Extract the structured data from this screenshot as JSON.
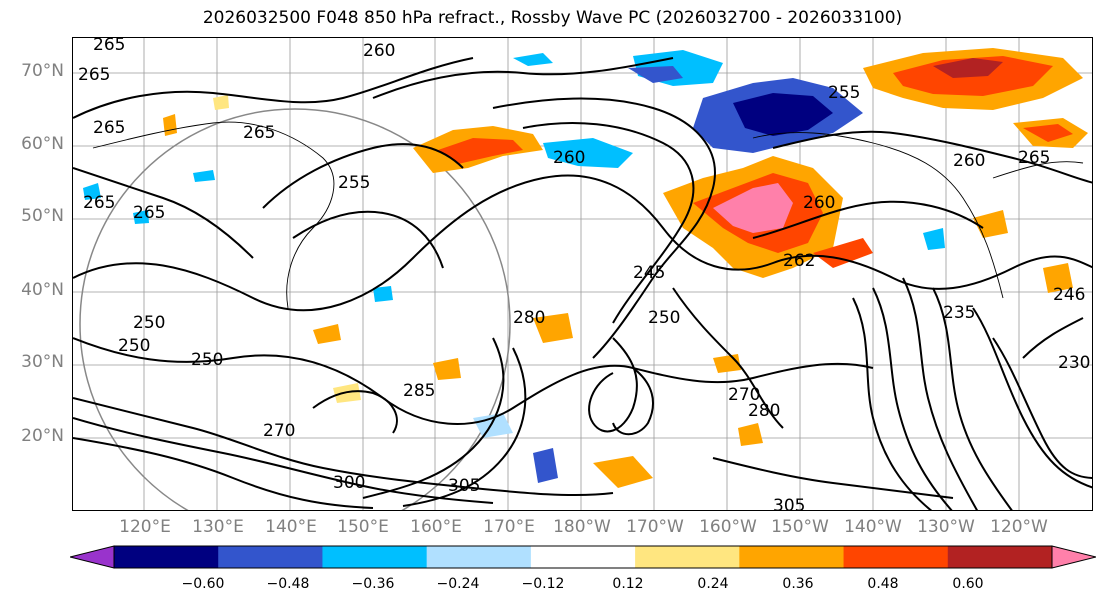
{
  "title": "2026032500 F048 850 hPa refract., Rossby Wave PC (2026032700 - 2026033100)",
  "latitude_labels": [
    "70°N",
    "60°N",
    "50°N",
    "40°N",
    "30°N",
    "20°N"
  ],
  "longitude_labels": [
    "120°E",
    "130°E",
    "140°E",
    "150°E",
    "160°E",
    "170°E",
    "180°W",
    "170°W",
    "160°W",
    "150°W",
    "140°W",
    "130°W",
    "120°W"
  ],
  "contour_labels": [
    "265",
    "260",
    "265",
    "265",
    "265",
    "255",
    "260",
    "255",
    "265",
    "260",
    "262",
    "245",
    "250",
    "265",
    "280",
    "250",
    "250",
    "285",
    "270",
    "280",
    "300",
    "305",
    "305",
    "260",
    "235",
    "230",
    "246",
    "250",
    "270",
    "265"
  ],
  "colorbar": {
    "ticks": [
      "−0.60",
      "−0.48",
      "−0.36",
      "−0.24",
      "−0.12",
      "0.12",
      "0.24",
      "0.36",
      "0.48",
      "0.60"
    ],
    "colors": [
      "#9933cc",
      "#000080",
      "#3355cc",
      "#00bfff",
      "#b0e0ff",
      "#ffffff",
      "#ffe680",
      "#ffa500",
      "#ff4500",
      "#b22222",
      "#ff80aa"
    ]
  }
}
